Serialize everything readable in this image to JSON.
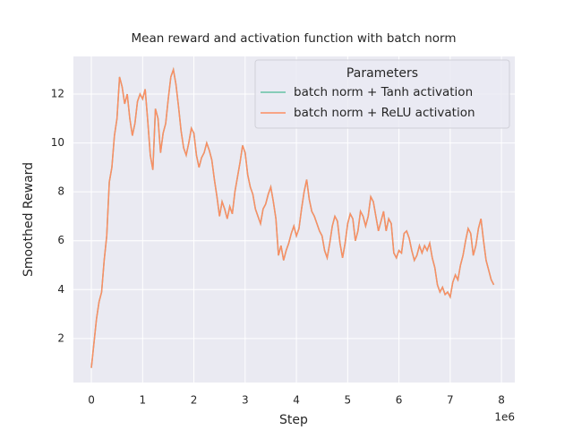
{
  "chart_data": {
    "type": "line",
    "title": "Mean reward and activation function with batch norm",
    "x_label": "Step",
    "y_label": "Smoothed Reward",
    "x_offset_label": "1e6",
    "legend_title": "Parameters",
    "legend_position": "upper right",
    "grid": true,
    "xlim": [
      -0.35,
      8.26
    ],
    "ylim": [
      0.2,
      13.54
    ],
    "xticks": [
      0,
      1,
      2,
      3,
      4,
      5,
      6,
      7,
      8
    ],
    "yticks": [
      2,
      4,
      6,
      8,
      10,
      12
    ],
    "x": [
      0,
      0.05,
      0.1,
      0.15,
      0.2,
      0.25,
      0.3,
      0.35,
      0.4,
      0.45,
      0.5,
      0.55,
      0.6,
      0.65,
      0.7,
      0.75,
      0.8,
      0.85,
      0.9,
      0.95,
      1.0,
      1.05,
      1.1,
      1.15,
      1.2,
      1.25,
      1.3,
      1.35,
      1.4,
      1.45,
      1.5,
      1.55,
      1.6,
      1.65,
      1.7,
      1.75,
      1.8,
      1.85,
      1.9,
      1.95,
      2.0,
      2.05,
      2.1,
      2.15,
      2.2,
      2.25,
      2.3,
      2.35,
      2.4,
      2.45,
      2.5,
      2.55,
      2.6,
      2.65,
      2.7,
      2.75,
      2.8,
      2.85,
      2.9,
      2.95,
      3.0,
      3.05,
      3.1,
      3.15,
      3.2,
      3.25,
      3.3,
      3.35,
      3.4,
      3.45,
      3.5,
      3.55,
      3.6,
      3.65,
      3.7,
      3.75,
      3.8,
      3.85,
      3.9,
      3.95,
      4.0,
      4.05,
      4.1,
      4.15,
      4.2,
      4.25,
      4.3,
      4.35,
      4.4,
      4.45,
      4.5,
      4.55,
      4.6,
      4.65,
      4.7,
      4.75,
      4.8,
      4.85,
      4.9,
      4.95,
      5.0,
      5.05,
      5.1,
      5.15,
      5.2,
      5.25,
      5.3,
      5.35,
      5.4,
      5.45,
      5.5,
      5.55,
      5.6,
      5.65,
      5.7,
      5.75,
      5.8,
      5.85,
      5.9,
      5.95,
      6.0,
      6.05,
      6.1,
      6.15,
      6.2,
      6.25,
      6.3,
      6.35,
      6.4,
      6.45,
      6.5,
      6.55,
      6.6,
      6.65,
      6.7,
      6.75,
      6.8,
      6.85,
      6.9,
      6.95,
      7.0,
      7.05,
      7.1,
      7.15,
      7.2,
      7.25,
      7.3,
      7.35,
      7.4,
      7.45,
      7.5,
      7.55,
      7.6,
      7.65,
      7.7,
      7.75,
      7.8,
      7.85
    ],
    "series": [
      {
        "name": "batch norm + Tanh activation",
        "color": "#66c2a5",
        "values": [
          0.8,
          1.8,
          2.8,
          3.5,
          3.9,
          5.2,
          6.2,
          8.4,
          9.0,
          10.3,
          11.0,
          12.7,
          12.3,
          11.6,
          12.0,
          11.0,
          10.3,
          10.8,
          11.7,
          12.0,
          11.8,
          12.2,
          10.9,
          9.5,
          8.9,
          11.4,
          11.0,
          9.6,
          10.4,
          10.8,
          11.8,
          12.7,
          13.0,
          12.4,
          11.5,
          10.5,
          9.8,
          9.5,
          10.0,
          10.6,
          10.4,
          9.5,
          9.0,
          9.4,
          9.6,
          10.0,
          9.7,
          9.3,
          8.5,
          7.8,
          7.0,
          7.6,
          7.3,
          6.9,
          7.4,
          7.1,
          8.0,
          8.6,
          9.2,
          9.9,
          9.6,
          8.7,
          8.2,
          7.9,
          7.3,
          7.0,
          6.7,
          7.3,
          7.5,
          7.9,
          8.2,
          7.6,
          6.9,
          5.4,
          5.8,
          5.2,
          5.6,
          5.9,
          6.3,
          6.6,
          6.2,
          6.5,
          7.3,
          8.0,
          8.5,
          7.7,
          7.2,
          7.0,
          6.7,
          6.4,
          6.2,
          5.6,
          5.3,
          5.9,
          6.6,
          7.0,
          6.8,
          5.9,
          5.3,
          5.9,
          6.7,
          7.1,
          6.9,
          6.0,
          6.4,
          7.2,
          7.0,
          6.6,
          7.0,
          7.8,
          7.6,
          7.0,
          6.4,
          6.8,
          7.2,
          6.4,
          6.9,
          6.7,
          5.5,
          5.3,
          5.6,
          5.5,
          6.3,
          6.4,
          6.1,
          5.6,
          5.2,
          5.4,
          5.8,
          5.5,
          5.8,
          5.6,
          5.9,
          5.3,
          4.9,
          4.2,
          3.9,
          4.1,
          3.8,
          3.9,
          3.7,
          4.3,
          4.6,
          4.4,
          5.0,
          5.4,
          6.0,
          6.5,
          6.3,
          5.4,
          5.8,
          6.5,
          6.9,
          6.0,
          5.2,
          4.8,
          4.4,
          4.2
        ]
      },
      {
        "name": "batch norm + ReLU activation",
        "color": "#fc8d62",
        "values": [
          0.8,
          1.8,
          2.8,
          3.5,
          3.9,
          5.2,
          6.2,
          8.4,
          9.0,
          10.3,
          11.0,
          12.7,
          12.3,
          11.6,
          12.0,
          11.0,
          10.3,
          10.8,
          11.7,
          12.0,
          11.8,
          12.2,
          10.9,
          9.5,
          8.9,
          11.4,
          11.0,
          9.6,
          10.4,
          10.8,
          11.8,
          12.7,
          13.0,
          12.4,
          11.5,
          10.5,
          9.8,
          9.5,
          10.0,
          10.6,
          10.4,
          9.5,
          9.0,
          9.4,
          9.6,
          10.0,
          9.7,
          9.3,
          8.5,
          7.8,
          7.0,
          7.6,
          7.3,
          6.9,
          7.4,
          7.1,
          8.0,
          8.6,
          9.2,
          9.9,
          9.6,
          8.7,
          8.2,
          7.9,
          7.3,
          7.0,
          6.7,
          7.3,
          7.5,
          7.9,
          8.2,
          7.6,
          6.9,
          5.4,
          5.8,
          5.2,
          5.6,
          5.9,
          6.3,
          6.6,
          6.2,
          6.5,
          7.3,
          8.0,
          8.5,
          7.7,
          7.2,
          7.0,
          6.7,
          6.4,
          6.2,
          5.6,
          5.3,
          5.9,
          6.6,
          7.0,
          6.8,
          5.9,
          5.3,
          5.9,
          6.7,
          7.1,
          6.9,
          6.0,
          6.4,
          7.2,
          7.0,
          6.6,
          7.0,
          7.8,
          7.6,
          7.0,
          6.4,
          6.8,
          7.2,
          6.4,
          6.9,
          6.7,
          5.5,
          5.3,
          5.6,
          5.5,
          6.3,
          6.4,
          6.1,
          5.6,
          5.2,
          5.4,
          5.8,
          5.5,
          5.8,
          5.6,
          5.9,
          5.3,
          4.9,
          4.2,
          3.9,
          4.1,
          3.8,
          3.9,
          3.7,
          4.3,
          4.6,
          4.4,
          5.0,
          5.4,
          6.0,
          6.5,
          6.3,
          5.4,
          5.8,
          6.5,
          6.9,
          6.0,
          5.2,
          4.8,
          4.4,
          4.2
        ]
      }
    ]
  }
}
